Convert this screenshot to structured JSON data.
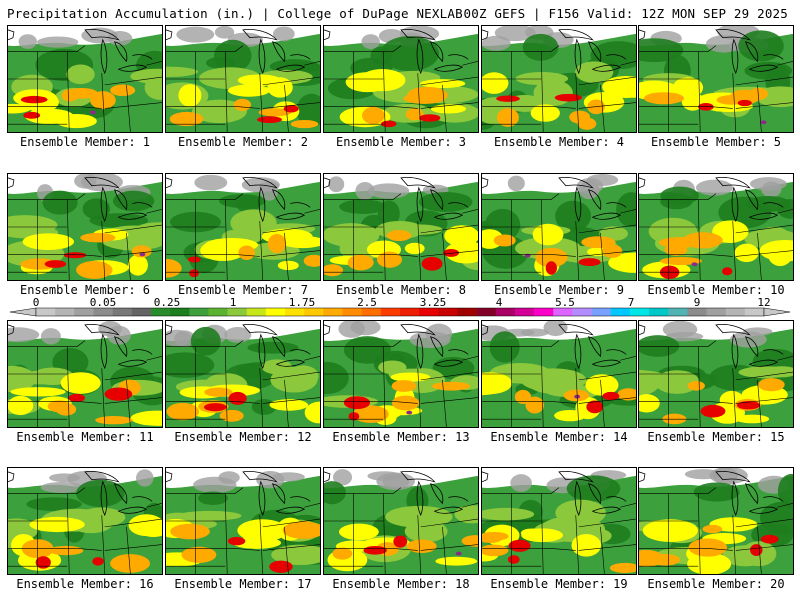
{
  "header": {
    "left": "Precipitation Accumulation (in.) | College of DuPage NEXLAB",
    "right": "00Z GEFS | F156 Valid: 12Z MON SEP 29 2025"
  },
  "panels": [
    {
      "label": "Ensemble Member: 1"
    },
    {
      "label": "Ensemble Member: 2"
    },
    {
      "label": "Ensemble Member: 3"
    },
    {
      "label": "Ensemble Member: 4"
    },
    {
      "label": "Ensemble Member: 5"
    },
    {
      "label": "Ensemble Member: 6"
    },
    {
      "label": "Ensemble Member: 7"
    },
    {
      "label": "Ensemble Member: 8"
    },
    {
      "label": "Ensemble Member: 9"
    },
    {
      "label": "Ensemble Member: 10"
    },
    {
      "label": "Ensemble Member: 11"
    },
    {
      "label": "Ensemble Member: 12"
    },
    {
      "label": "Ensemble Member: 13"
    },
    {
      "label": "Ensemble Member: 14"
    },
    {
      "label": "Ensemble Member: 15"
    },
    {
      "label": "Ensemble Member: 16"
    },
    {
      "label": "Ensemble Member: 17"
    },
    {
      "label": "Ensemble Member: 18"
    },
    {
      "label": "Ensemble Member: 19"
    },
    {
      "label": "Ensemble Member: 20"
    }
  ],
  "colorbar": {
    "labels": [
      "0",
      "0.05",
      "0.25",
      "1",
      "1.75",
      "2.5",
      "3.25",
      "4",
      "5.5",
      "7",
      "9",
      "12"
    ],
    "colors": [
      "#c8c8c8",
      "#b4b4b4",
      "#a0a0a0",
      "#8c8c8c",
      "#787878",
      "#646464",
      "#288c28",
      "#1e7d1e",
      "#3ca03c",
      "#5ab432",
      "#8cc83c",
      "#c8e61e",
      "#ffff00",
      "#ffe100",
      "#ffc800",
      "#ffaa00",
      "#ff8c00",
      "#ff6e00",
      "#ff3c00",
      "#f01e00",
      "#e60000",
      "#c80000",
      "#a00000",
      "#820028",
      "#aa0064",
      "#d20096",
      "#ff00c8",
      "#dc64ff",
      "#b48cff",
      "#78a0ff",
      "#00c8ff",
      "#00e6e6",
      "#00c8c8",
      "#50b4b4",
      "#8c8c8c",
      "#a0a0a0",
      "#b4b4b4",
      "#c8c8c8"
    ]
  },
  "colors": {
    "background": "#ffffff",
    "green_dark": "#1e7d1e",
    "green": "#3ca03c",
    "green_light": "#8cc83c",
    "yellow": "#ffff00",
    "orange": "#ffaa00",
    "red": "#e60000",
    "purple": "#8c2a8c",
    "gray": "#a0a0a0"
  }
}
